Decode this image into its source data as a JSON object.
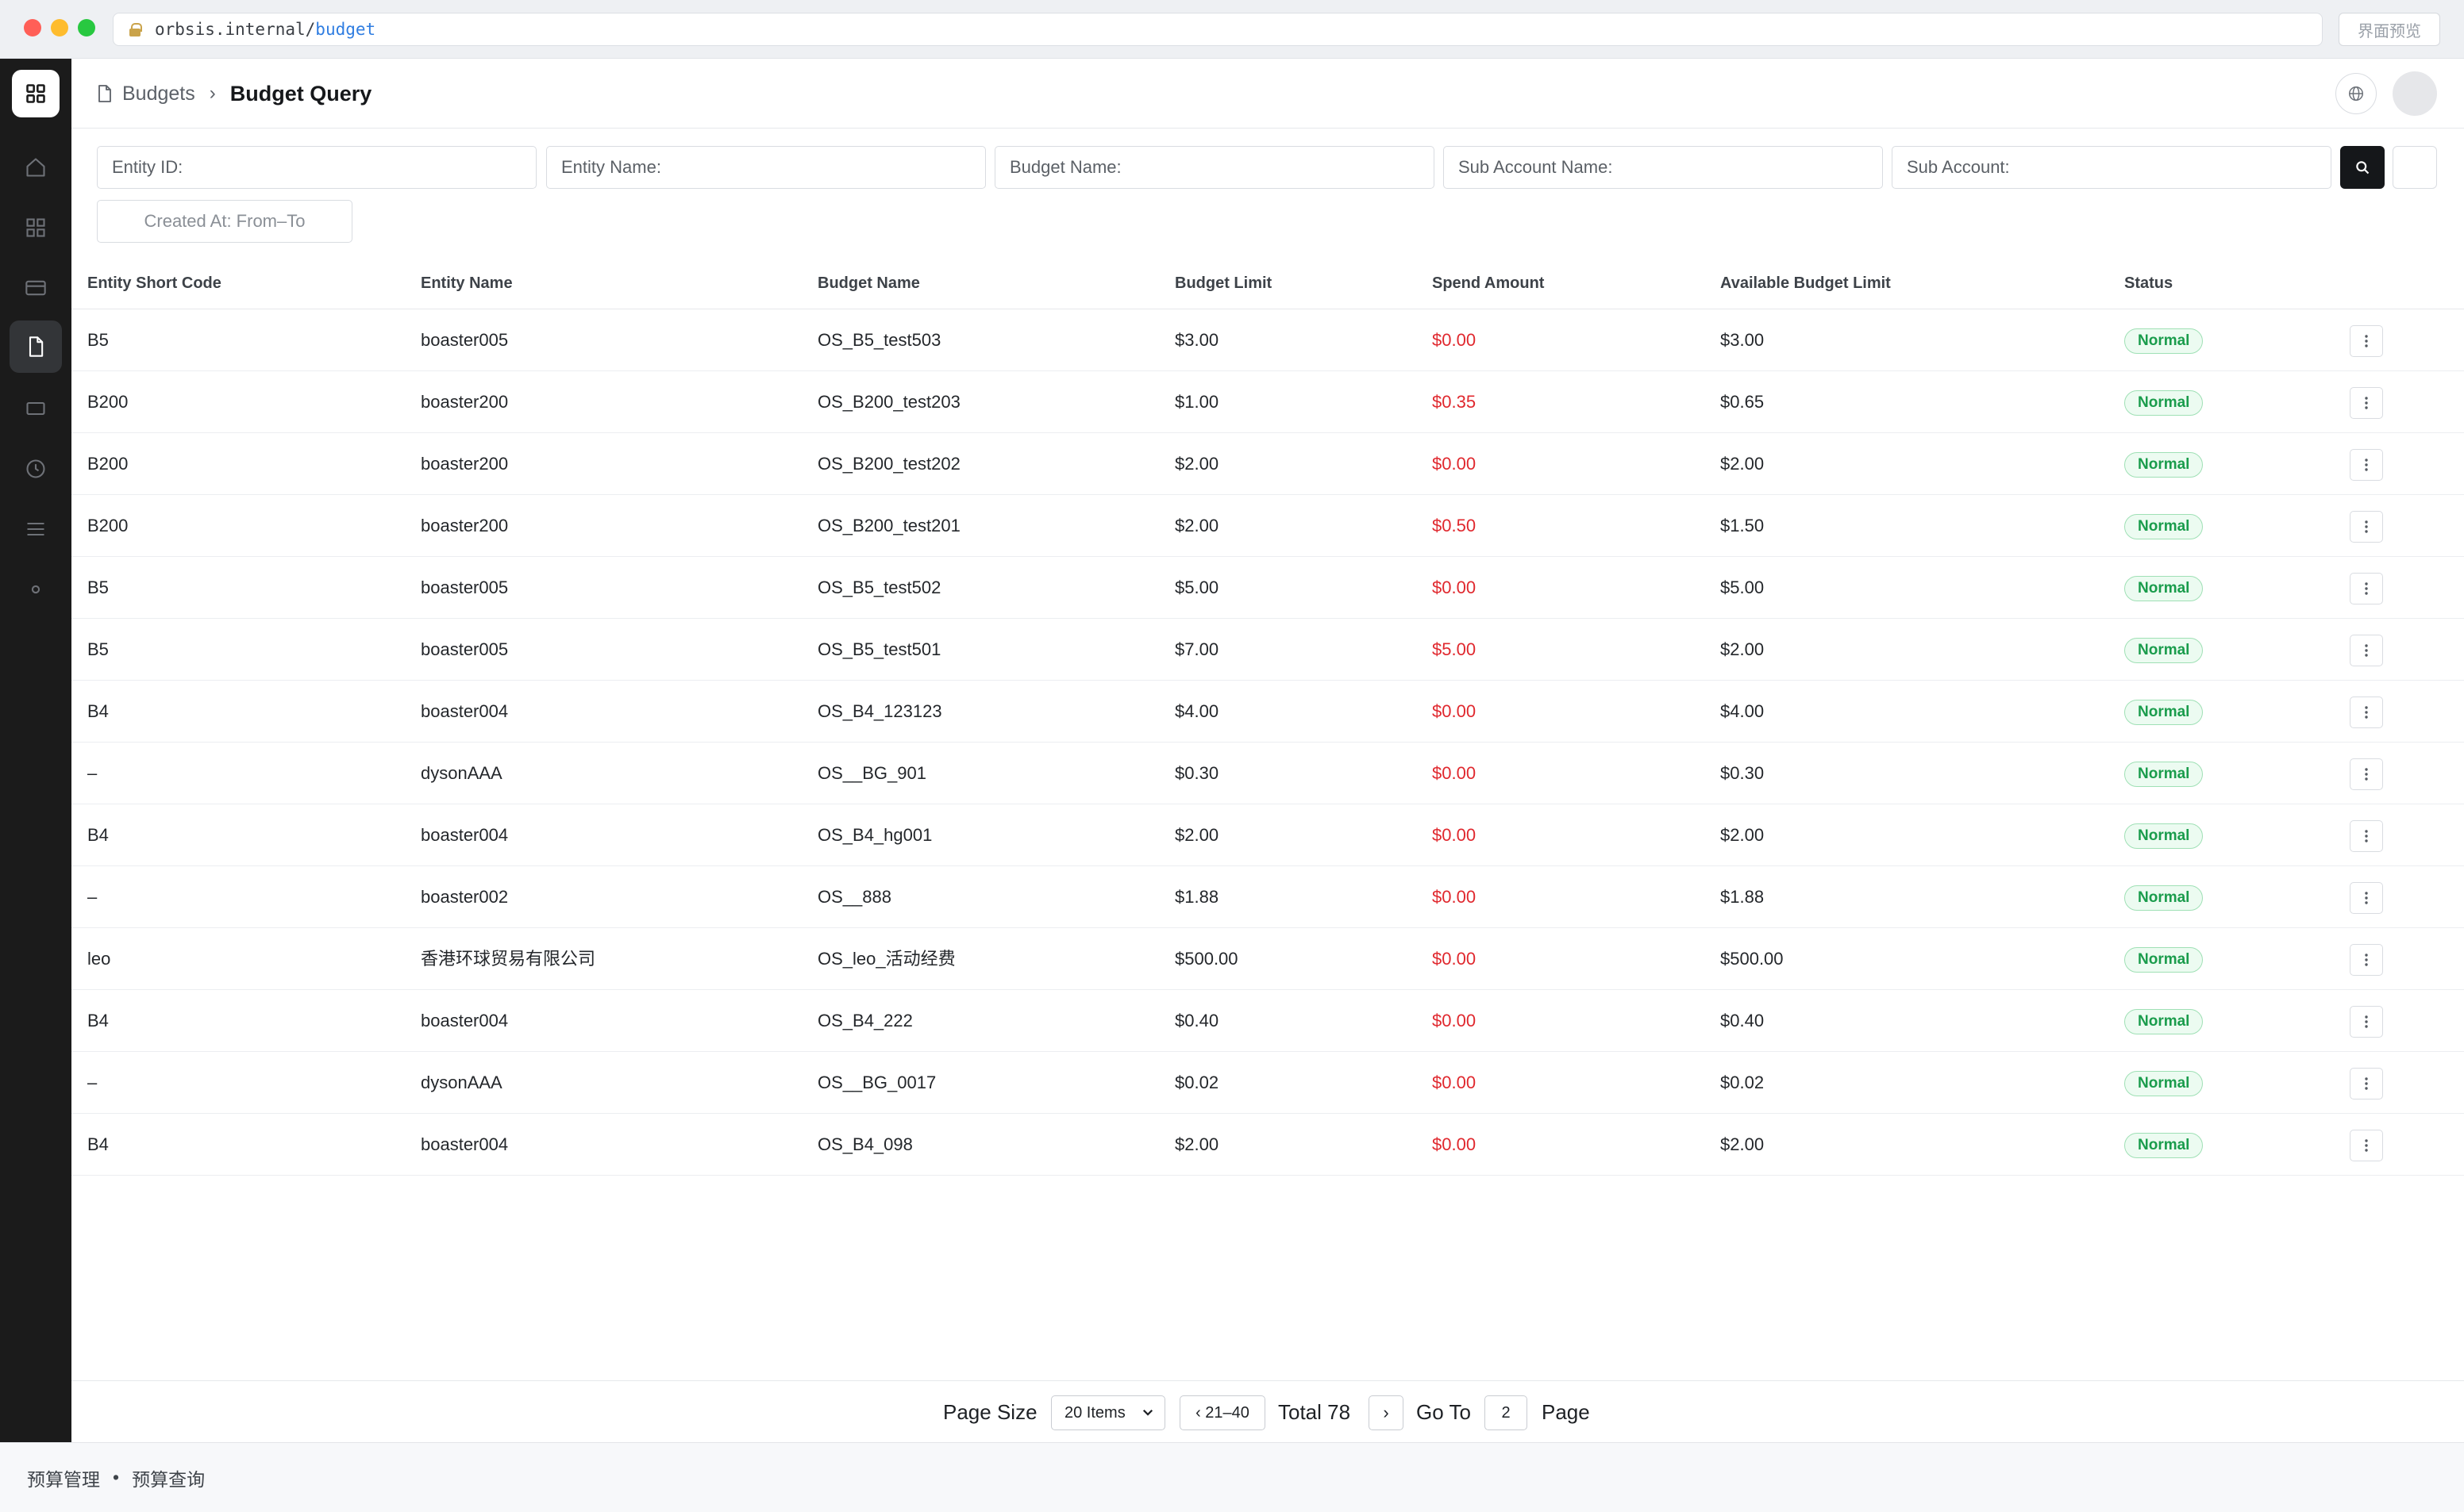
{
  "browser": {
    "url_host": "orbsis.internal/",
    "url_path": "budget",
    "preview_label": "界面预览"
  },
  "header": {
    "breadcrumb_parent": "Budgets",
    "breadcrumb_separator": "›",
    "breadcrumb_current": "Budget Query"
  },
  "filters": {
    "entity_id": "Entity ID:",
    "entity_name": "Entity Name:",
    "budget_name": "Budget Name:",
    "sub_account_name": "Sub Account Name:",
    "sub_account": "Sub Account:",
    "created_at": "Created At: From–To"
  },
  "table": {
    "columns": [
      "Entity Short Code",
      "Entity Name",
      "Budget Name",
      "Budget Limit",
      "Spend Amount",
      "Available Budget Limit",
      "Status"
    ],
    "rows": [
      {
        "code": "B5",
        "entity": "boaster005",
        "budget": "OS_B5_test503",
        "limit": "$3.00",
        "spend": "$0.00",
        "available": "$3.00",
        "status": "Normal"
      },
      {
        "code": "B200",
        "entity": "boaster200",
        "budget": "OS_B200_test203",
        "limit": "$1.00",
        "spend": "$0.35",
        "available": "$0.65",
        "status": "Normal"
      },
      {
        "code": "B200",
        "entity": "boaster200",
        "budget": "OS_B200_test202",
        "limit": "$2.00",
        "spend": "$0.00",
        "available": "$2.00",
        "status": "Normal"
      },
      {
        "code": "B200",
        "entity": "boaster200",
        "budget": "OS_B200_test201",
        "limit": "$2.00",
        "spend": "$0.50",
        "available": "$1.50",
        "status": "Normal"
      },
      {
        "code": "B5",
        "entity": "boaster005",
        "budget": "OS_B5_test502",
        "limit": "$5.00",
        "spend": "$0.00",
        "available": "$5.00",
        "status": "Normal"
      },
      {
        "code": "B5",
        "entity": "boaster005",
        "budget": "OS_B5_test501",
        "limit": "$7.00",
        "spend": "$5.00",
        "available": "$2.00",
        "status": "Normal"
      },
      {
        "code": "B4",
        "entity": "boaster004",
        "budget": "OS_B4_123123",
        "limit": "$4.00",
        "spend": "$0.00",
        "available": "$4.00",
        "status": "Normal"
      },
      {
        "code": "–",
        "entity": "dysonAAA",
        "budget": "OS__BG_901",
        "limit": "$0.30",
        "spend": "$0.00",
        "available": "$0.30",
        "status": "Normal"
      },
      {
        "code": "B4",
        "entity": "boaster004",
        "budget": "OS_B4_hg001",
        "limit": "$2.00",
        "spend": "$0.00",
        "available": "$2.00",
        "status": "Normal"
      },
      {
        "code": "–",
        "entity": "boaster002",
        "budget": "OS__888",
        "limit": "$1.88",
        "spend": "$0.00",
        "available": "$1.88",
        "status": "Normal"
      },
      {
        "code": "leo",
        "entity": "香港环球贸易有限公司",
        "budget": "OS_leo_活动经费",
        "limit": "$500.00",
        "spend": "$0.00",
        "available": "$500.00",
        "status": "Normal"
      },
      {
        "code": "B4",
        "entity": "boaster004",
        "budget": "OS_B4_222",
        "limit": "$0.40",
        "spend": "$0.00",
        "available": "$0.40",
        "status": "Normal"
      },
      {
        "code": "–",
        "entity": "dysonAAA",
        "budget": "OS__BG_0017",
        "limit": "$0.02",
        "spend": "$0.00",
        "available": "$0.02",
        "status": "Normal"
      },
      {
        "code": "B4",
        "entity": "boaster004",
        "budget": "OS_B4_098",
        "limit": "$2.00",
        "spend": "$0.00",
        "available": "$2.00",
        "status": "Normal"
      }
    ]
  },
  "pagination": {
    "page_size_label": "Page Size",
    "page_size_value": "20 Items",
    "range": "‹ 21–40",
    "total": "Total 78",
    "next": "›",
    "goto_label": "Go To",
    "goto_value": "2",
    "page_label": "Page"
  },
  "footer": {
    "section": "预算管理",
    "bullet": "•",
    "page": "预算查询"
  },
  "colors": {
    "sidebar_bg": "#1b1b1b",
    "spend_red": "#e0282e",
    "status_green": "#1a9c4c",
    "search_btn": "#15171a"
  },
  "icons": {
    "sidebar": [
      "home-icon",
      "grid-icon",
      "card-icon",
      "document-icon",
      "tablet-icon",
      "clock-icon",
      "menu-icon",
      "dot-icon"
    ]
  }
}
